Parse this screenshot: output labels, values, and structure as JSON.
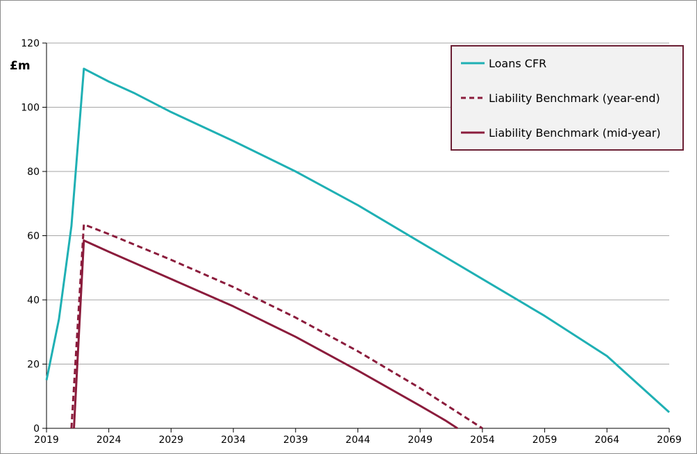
{
  "chart_data": {
    "type": "line",
    "ylabel": "£m",
    "ylim": [
      0,
      120
    ],
    "yticks": [
      0,
      20,
      40,
      60,
      80,
      100,
      120
    ],
    "xlim": [
      2019,
      2069
    ],
    "xticks": [
      2019,
      2024,
      2029,
      2034,
      2039,
      2044,
      2049,
      2054,
      2059,
      2064,
      2069
    ],
    "grid": "horizontal",
    "legend_position": "top-right",
    "series": [
      {
        "name": "Loans CFR",
        "color": "#1fb0b4",
        "dash": "solid",
        "x": [
          2019,
          2020,
          2021,
          2022,
          2024,
          2026,
          2029,
          2034,
          2039,
          2044,
          2049,
          2054,
          2059,
          2064,
          2069
        ],
        "y": [
          15,
          34,
          63,
          112,
          108,
          104.5,
          98.5,
          89.5,
          80,
          69.5,
          58,
          46.5,
          35,
          22.5,
          5
        ]
      },
      {
        "name": "Liability Benchmark (year-end)",
        "color": "#8b1c3c",
        "dash": "dashed",
        "x": [
          2021,
          2022,
          2024,
          2029,
          2034,
          2039,
          2044,
          2049,
          2054
        ],
        "y": [
          0,
          63.5,
          60.5,
          52.5,
          44,
          34.5,
          24,
          12.5,
          0
        ]
      },
      {
        "name": "Liability Benchmark (mid-year)",
        "color": "#8b1c3c",
        "dash": "solid",
        "x": [
          2021.2,
          2022,
          2024,
          2029,
          2034,
          2039,
          2044,
          2049,
          2051,
          2052
        ],
        "y": [
          0,
          58.5,
          55,
          46.5,
          38,
          28.5,
          18,
          7,
          2.5,
          0
        ]
      }
    ]
  }
}
